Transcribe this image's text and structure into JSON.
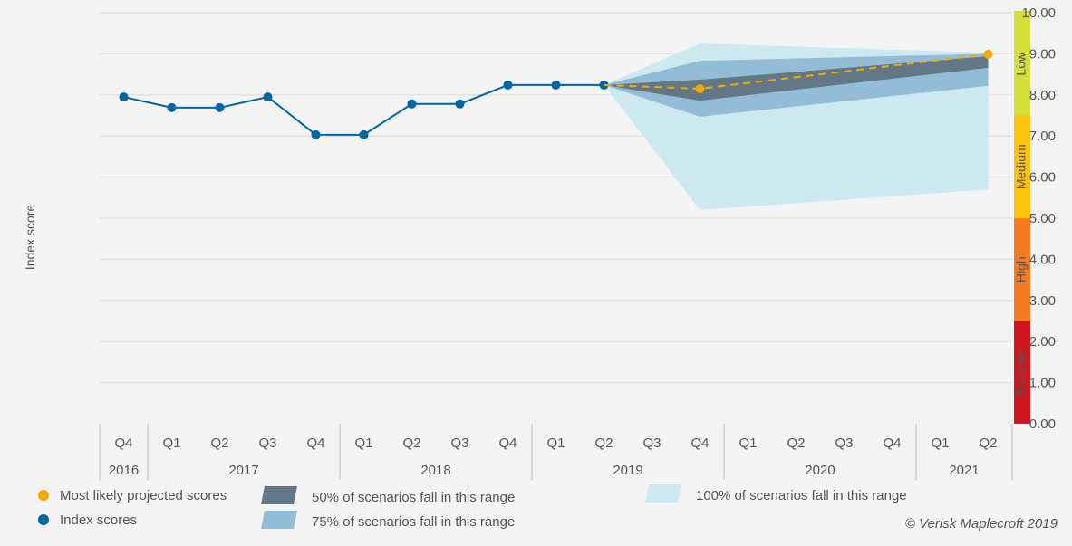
{
  "chart_data": {
    "type": "line",
    "ylabel": "Index score",
    "ylim": [
      0,
      10
    ],
    "yticks": [
      "0.00",
      "1.00",
      "2.00",
      "3.00",
      "4.00",
      "5.00",
      "6.00",
      "7.00",
      "8.00",
      "9.00",
      "10.00"
    ],
    "grid": true,
    "quarters": [
      "Q4",
      "Q1",
      "Q2",
      "Q3",
      "Q4",
      "Q1",
      "Q2",
      "Q3",
      "Q4",
      "Q1",
      "Q2",
      "Q3",
      "Q4",
      "Q1",
      "Q2",
      "Q3",
      "Q4",
      "Q1",
      "Q2"
    ],
    "years": [
      {
        "label": "2016",
        "span": 1
      },
      {
        "label": "2017",
        "span": 4
      },
      {
        "label": "2018",
        "span": 4
      },
      {
        "label": "2019",
        "span": 4
      },
      {
        "label": "2020",
        "span": 4
      },
      {
        "label": "2021",
        "span": 2
      }
    ],
    "series": [
      {
        "name": "Index scores",
        "color": "#0066a1",
        "points": [
          [
            0,
            7.95
          ],
          [
            1,
            7.69
          ],
          [
            2,
            7.69
          ],
          [
            3,
            7.95
          ],
          [
            4,
            7.03
          ],
          [
            5,
            7.03
          ],
          [
            6,
            7.78
          ],
          [
            7,
            7.78
          ],
          [
            8,
            8.24
          ],
          [
            9,
            8.24
          ],
          [
            10,
            8.24
          ]
        ]
      },
      {
        "name": "Most likely projected scores",
        "color": "#f7a800",
        "dashed": true,
        "points": [
          [
            10,
            8.24
          ],
          [
            12,
            8.15
          ],
          [
            18,
            8.99
          ]
        ],
        "markers": [
          12,
          18
        ]
      }
    ],
    "bands": [
      {
        "name": "100% of scenarios fall in this range",
        "color": "#cce9f0",
        "points": [
          [
            10,
            8.24,
            8.24
          ],
          [
            12,
            5.2,
            9.25
          ],
          [
            18,
            5.7,
            9.03
          ]
        ]
      },
      {
        "name": "75% of scenarios fall in this range",
        "color": "#93bdd6",
        "points": [
          [
            10,
            8.24,
            8.24
          ],
          [
            12,
            7.47,
            8.83
          ],
          [
            18,
            8.22,
            9.0
          ]
        ]
      },
      {
        "name": "50% of scenarios fall in this range",
        "color": "#627886",
        "points": [
          [
            10,
            8.24,
            8.24
          ],
          [
            12,
            7.86,
            8.37
          ],
          [
            18,
            8.66,
            8.94
          ]
        ]
      }
    ],
    "risk_bands": [
      {
        "label": "Extreme",
        "from": 0,
        "to": 2.5,
        "color": "#d0161e"
      },
      {
        "label": "High",
        "from": 2.5,
        "to": 5,
        "color": "#f47b20"
      },
      {
        "label": "Medium",
        "from": 5,
        "to": 7.5,
        "color": "#fcc30a"
      },
      {
        "label": "Low",
        "from": 7.5,
        "to": 10,
        "color": "#d5df3a"
      }
    ],
    "legend_placement": "bottom"
  },
  "copyright": "© Verisk Maplecroft 2019"
}
